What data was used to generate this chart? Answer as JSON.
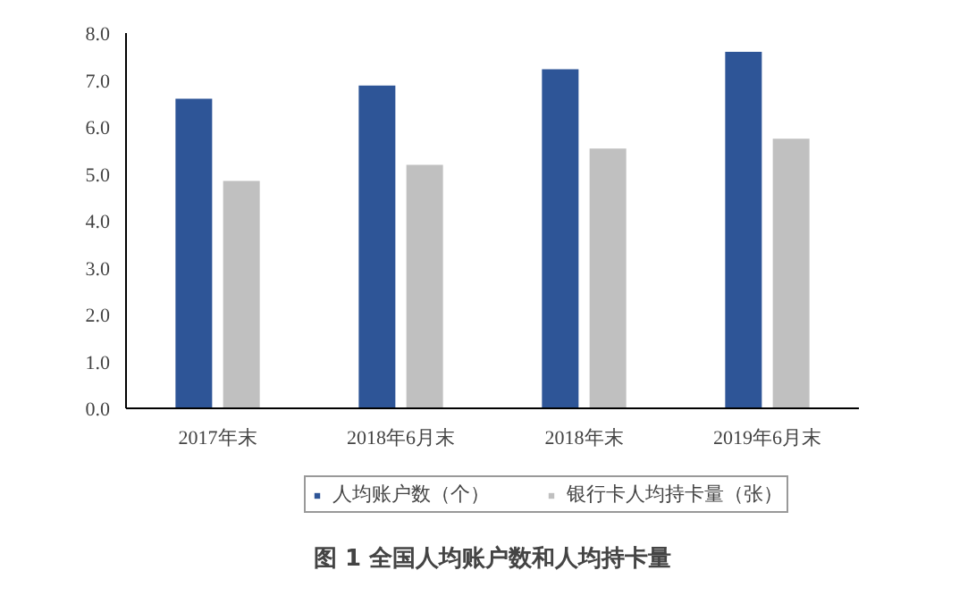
{
  "chart_data": {
    "type": "bar",
    "title": "图 1 全国人均账户数和人均持卡量",
    "categories": [
      "2017年末",
      "2018年6月末",
      "2018年末",
      "2019年6月末"
    ],
    "series": [
      {
        "name": "人均账户数（个）",
        "color": "#2e5597",
        "values": [
          6.6,
          6.88,
          7.23,
          7.6
        ]
      },
      {
        "name": "银行卡人均持卡量（张）",
        "color": "#c0c0c0",
        "values": [
          4.85,
          5.19,
          5.54,
          5.75
        ]
      }
    ],
    "ylim": [
      0,
      8
    ],
    "yticks": [
      {
        "value": 0,
        "label": "0.0"
      },
      {
        "value": 1,
        "label": "1.0"
      },
      {
        "value": 2,
        "label": "2.0"
      },
      {
        "value": 3,
        "label": "3.0"
      },
      {
        "value": 4,
        "label": "4.0"
      },
      {
        "value": 5,
        "label": "5.0"
      },
      {
        "value": 6,
        "label": "6.0"
      },
      {
        "value": 7,
        "label": "7.0"
      },
      {
        "value": 8,
        "label": "8.0"
      }
    ],
    "grid": false,
    "legend": "bottom"
  }
}
